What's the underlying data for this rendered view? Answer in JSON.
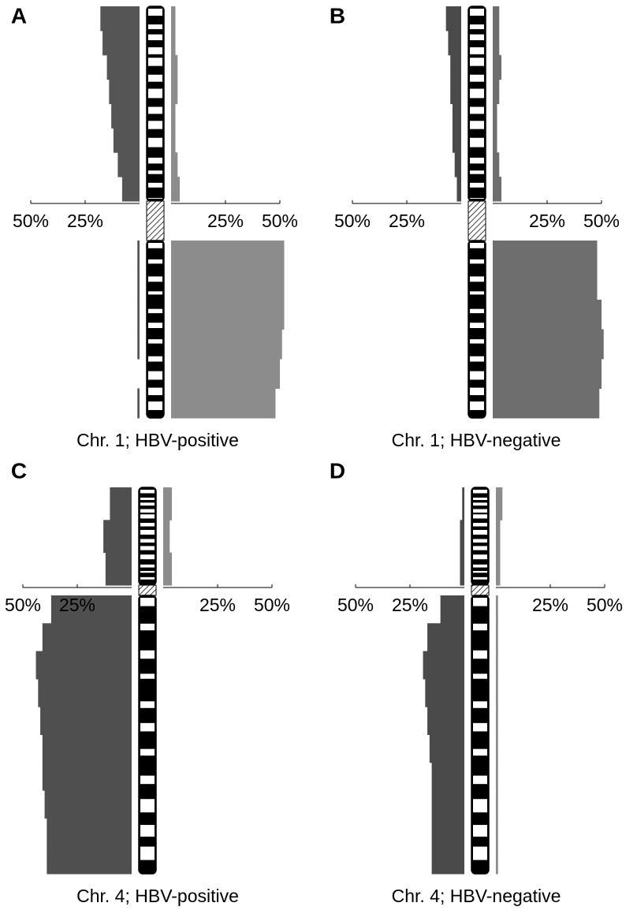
{
  "chart_data": [
    {
      "type": "bar",
      "label": "A",
      "title": "Chr. 1; HBV-positive",
      "centromere": 8,
      "categories": [
        null,
        null,
        null,
        null,
        null,
        null,
        null,
        null,
        null,
        null,
        null,
        null,
        null,
        null
      ],
      "xlim": [
        0,
        50
      ],
      "xticks": [
        {
          "value": 25,
          "label": "25%"
        },
        {
          "value": 50,
          "label": "50%"
        }
      ],
      "series": [
        {
          "direction": "left",
          "color": "#555555",
          "values": [
            18,
            17,
            15,
            14,
            13,
            12,
            10,
            8,
            1,
            1,
            1,
            1,
            0,
            1
          ]
        },
        {
          "direction": "right",
          "color": "#8c8c8c",
          "values": [
            2,
            2,
            3,
            3,
            2,
            2,
            3,
            4,
            52,
            52,
            52,
            51,
            50,
            48
          ]
        }
      ]
    },
    {
      "type": "bar",
      "label": "B",
      "title": "Chr. 1; HBV-negative",
      "centromere": 8,
      "categories": [
        null,
        null,
        null,
        null,
        null,
        null,
        null,
        null,
        null,
        null,
        null,
        null,
        null,
        null
      ],
      "xlim": [
        0,
        50
      ],
      "xticks": [
        {
          "value": 25,
          "label": "25%"
        },
        {
          "value": 50,
          "label": "50%"
        }
      ],
      "series": [
        {
          "direction": "left",
          "color": "#4a4a4a",
          "values": [
            7,
            6,
            5,
            5,
            4,
            4,
            3,
            2,
            0,
            0,
            0,
            0,
            0,
            0
          ]
        },
        {
          "direction": "right",
          "color": "#6e6e6e",
          "values": [
            3,
            3,
            4,
            3,
            2,
            2,
            3,
            4,
            48,
            48,
            50,
            51,
            50,
            49
          ]
        }
      ]
    },
    {
      "type": "bar",
      "label": "C",
      "title": "Chr. 4; HBV-positive",
      "centromere": 3,
      "categories": [
        null,
        null,
        null,
        null,
        null,
        null,
        null,
        null,
        null,
        null,
        null,
        null,
        null
      ],
      "xlim": [
        0,
        50
      ],
      "xticks": [
        {
          "value": 25,
          "label": "25%"
        },
        {
          "value": 50,
          "label": "50%"
        }
      ],
      "series": [
        {
          "direction": "left",
          "color": "#4f4f4f",
          "values": [
            10,
            13,
            12,
            37,
            41,
            44,
            43,
            42,
            41,
            41,
            40,
            39,
            39
          ]
        },
        {
          "direction": "right",
          "color": "#8c8c8c",
          "values": [
            4,
            3,
            4,
            0,
            0,
            0,
            0,
            0,
            0,
            0,
            0,
            0,
            0
          ]
        }
      ]
    },
    {
      "type": "bar",
      "label": "D",
      "title": "Chr. 4; HBV-negative",
      "centromere": 3,
      "categories": [
        null,
        null,
        null,
        null,
        null,
        null,
        null,
        null,
        null,
        null,
        null,
        null,
        null
      ],
      "xlim": [
        0,
        50
      ],
      "xticks": [
        {
          "value": 25,
          "label": "25%"
        },
        {
          "value": 50,
          "label": "50%"
        }
      ],
      "series": [
        {
          "direction": "left",
          "color": "#4a4a4a",
          "values": [
            1,
            2,
            2,
            11,
            17,
            19,
            18,
            17,
            16,
            15,
            15,
            15,
            15
          ]
        },
        {
          "direction": "right",
          "color": "#8c8c8c",
          "values": [
            3,
            2,
            2,
            1,
            1,
            1,
            1,
            1,
            1,
            1,
            1,
            1,
            1
          ]
        }
      ]
    }
  ]
}
